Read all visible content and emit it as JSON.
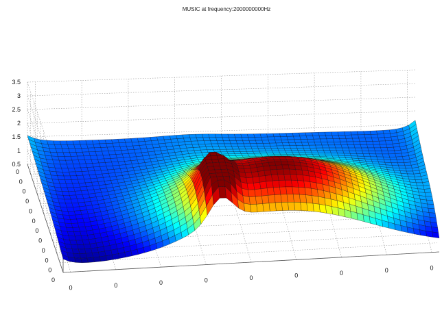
{
  "chart_data": {
    "type": "surface",
    "title": "MUSIC at frequency:2000000000Hz",
    "xlabel": "",
    "ylabel": "",
    "zlabel": "",
    "z_ticks": [
      "0.5",
      "1",
      "1.5",
      "2",
      "2.5",
      "3",
      "3.5"
    ],
    "zlim": [
      0.5,
      3.5
    ],
    "x_ticks": [
      "0",
      "0",
      "0",
      "0",
      "0",
      "0",
      "0",
      "0",
      "0"
    ],
    "y_ticks": [
      "0",
      "0",
      "0",
      "0",
      "0",
      "0",
      "0",
      "0",
      "0",
      "0",
      "0",
      "0"
    ],
    "grid": true,
    "colormap": "jet",
    "colormap_stops": [
      "#00008f",
      "#0000ff",
      "#00ffff",
      "#ffff00",
      "#ff0000",
      "#800000"
    ],
    "peaks": [
      {
        "u": 0.6,
        "v": 0.22,
        "height": 3.05,
        "width": 0.22
      },
      {
        "u": 0.42,
        "v": 0.16,
        "height": 2.55,
        "width": 0.03
      }
    ]
  }
}
